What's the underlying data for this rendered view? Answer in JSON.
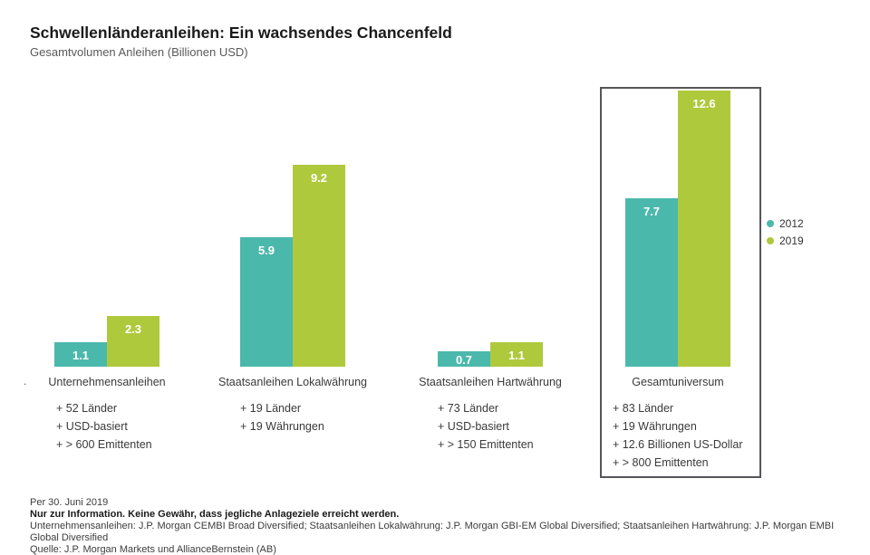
{
  "header": {
    "title": "Schwellenländeranleihen: Ein wachsendes Chancenfeld",
    "subtitle": "Gesamtvolumen Anleihen (Billionen USD)"
  },
  "colors": {
    "series2012": "#4BB8AC",
    "series2019": "#AFC93C",
    "highlight_border": "#55565A"
  },
  "chart_data": {
    "type": "bar",
    "title": "Schwellenländeranleihen: Ein wachsendes Chancenfeld",
    "subtitle": "Gesamtvolumen Anleihen (Billionen USD)",
    "ylabel": "Billionen USD",
    "ylim": [
      0,
      13
    ],
    "grid": false,
    "legend_position": "right",
    "categories": [
      "Unternehmensanleihen",
      "Staatsanleihen Lokalwährung",
      "Staatsanleihen Hartwährung",
      "Gesamtuniversum"
    ],
    "series": [
      {
        "name": "2012",
        "values": [
          1.1,
          5.9,
          0.7,
          7.7
        ]
      },
      {
        "name": "2019",
        "values": [
          2.3,
          9.2,
          1.1,
          12.6
        ]
      }
    ],
    "notes": [
      [
        "+ 52 Länder",
        "+ USD-basiert",
        "+ > 600 Emittenten"
      ],
      [
        "+ 19 Länder",
        "+ 19 Währungen"
      ],
      [
        "+ 73 Länder",
        "+ USD-basiert",
        "+ > 150 Emittenten"
      ],
      [
        "+ 83 Länder",
        "+ 19 Währungen",
        "+ 12.6 Billionen US-Dollar",
        "+ > 800 Emittenten"
      ]
    ],
    "highlight_category_index": 3
  },
  "legend": [
    {
      "label": "2012"
    },
    {
      "label": "2019"
    }
  ],
  "stray_dot": ".",
  "footer": {
    "line1": "Per 30. Juni 2019",
    "line2": "Nur zur Information. Keine Gewähr, dass jegliche Anlageziele erreicht werden.",
    "line3": "Unternehmensanleihen: J.P. Morgan CEMBI Broad Diversified; Staatsanleihen Lokalwährung: J.P. Morgan GBI-EM Global Diversified; Staatsanleihen Hartwährung: J.P. Morgan EMBI Global Diversified",
    "line4": "Quelle: J.P. Morgan Markets und AllianceBernstein (AB)"
  }
}
